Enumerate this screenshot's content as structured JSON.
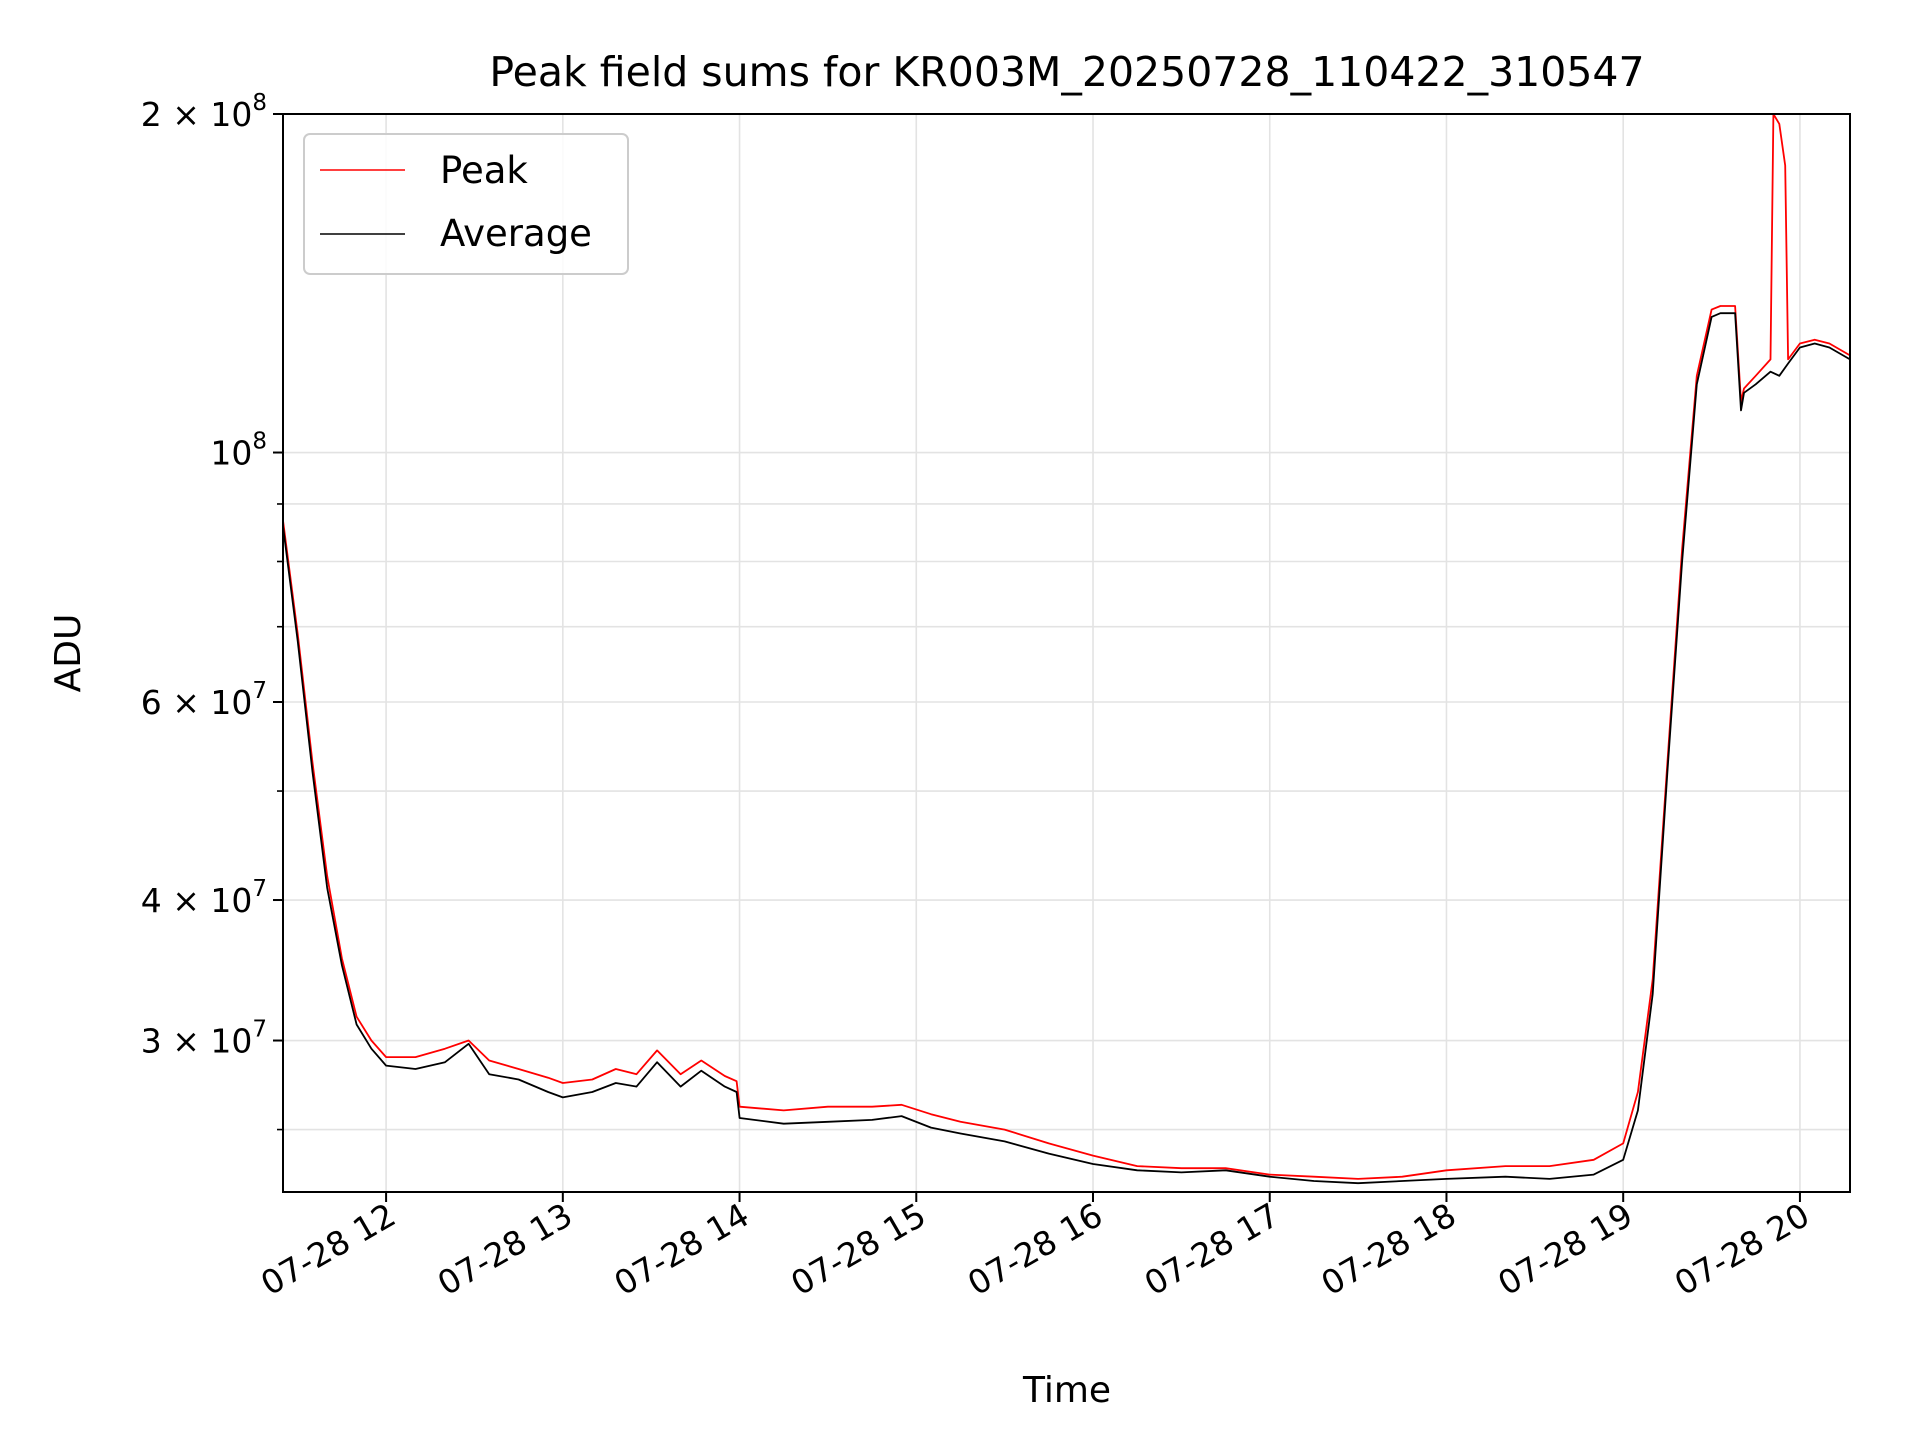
{
  "chart_data": {
    "type": "line",
    "title": "Peak field sums for KR003M_20250728_110422_310547",
    "xlabel": "Time",
    "ylabel": "ADU",
    "x_scale": "time",
    "y_scale": "log",
    "xlim": [
      "2025-07-28 11:25",
      "2025-07-28 20:17"
    ],
    "ylim": [
      22000000,
      200000000
    ],
    "grid": true,
    "legend_position": "top-left",
    "x_ticks": [
      {
        "t": "2025-07-28 12:00",
        "label": "07-28 12"
      },
      {
        "t": "2025-07-28 13:00",
        "label": "07-28 13"
      },
      {
        "t": "2025-07-28 14:00",
        "label": "07-28 14"
      },
      {
        "t": "2025-07-28 15:00",
        "label": "07-28 15"
      },
      {
        "t": "2025-07-28 16:00",
        "label": "07-28 16"
      },
      {
        "t": "2025-07-28 17:00",
        "label": "07-28 17"
      },
      {
        "t": "2025-07-28 18:00",
        "label": "07-28 18"
      },
      {
        "t": "2025-07-28 19:00",
        "label": "07-28 19"
      },
      {
        "t": "2025-07-28 20:00",
        "label": "07-28 20"
      }
    ],
    "y_ticks": [
      {
        "value": 200000000,
        "mant": "2",
        "exp": "8"
      },
      {
        "value": 100000000,
        "mant": "",
        "exp": "8"
      },
      {
        "value": 60000000,
        "mant": "6",
        "exp": "7"
      },
      {
        "value": 40000000,
        "mant": "4",
        "exp": "7"
      },
      {
        "value": 30000000,
        "mant": "3",
        "exp": "7"
      }
    ],
    "y_minor_ticks": [
      25000000,
      50000000,
      70000000,
      80000000,
      90000000
    ],
    "series": [
      {
        "name": "Average",
        "color": "#000000",
        "x": [
          "2025-07-28 11:25",
          "2025-07-28 11:30",
          "2025-07-28 11:35",
          "2025-07-28 11:40",
          "2025-07-28 11:45",
          "2025-07-28 11:50",
          "2025-07-28 11:55",
          "2025-07-28 12:00",
          "2025-07-28 12:10",
          "2025-07-28 12:20",
          "2025-07-28 12:28",
          "2025-07-28 12:35",
          "2025-07-28 12:45",
          "2025-07-28 12:55",
          "2025-07-28 13:00",
          "2025-07-28 13:10",
          "2025-07-28 13:18",
          "2025-07-28 13:25",
          "2025-07-28 13:32",
          "2025-07-28 13:40",
          "2025-07-28 13:47",
          "2025-07-28 13:55",
          "2025-07-28 13:59",
          "2025-07-28 14:00",
          "2025-07-28 14:15",
          "2025-07-28 14:30",
          "2025-07-28 14:45",
          "2025-07-28 14:55",
          "2025-07-28 15:05",
          "2025-07-28 15:15",
          "2025-07-28 15:30",
          "2025-07-28 15:45",
          "2025-07-28 16:00",
          "2025-07-28 16:15",
          "2025-07-28 16:30",
          "2025-07-28 16:45",
          "2025-07-28 17:00",
          "2025-07-28 17:15",
          "2025-07-28 17:30",
          "2025-07-28 17:45",
          "2025-07-28 18:00",
          "2025-07-28 18:20",
          "2025-07-28 18:35",
          "2025-07-28 18:50",
          "2025-07-28 19:00",
          "2025-07-28 19:05",
          "2025-07-28 19:10",
          "2025-07-28 19:15",
          "2025-07-28 19:20",
          "2025-07-28 19:25",
          "2025-07-28 19:30",
          "2025-07-28 19:33",
          "2025-07-28 19:38",
          "2025-07-28 19:40",
          "2025-07-28 19:41",
          "2025-07-28 19:45",
          "2025-07-28 19:50",
          "2025-07-28 19:53",
          "2025-07-28 19:56",
          "2025-07-28 20:00",
          "2025-07-28 20:05",
          "2025-07-28 20:10",
          "2025-07-28 20:17"
        ],
        "y": [
          86000000,
          68000000,
          52000000,
          41000000,
          35000000,
          31000000,
          29500000,
          28500000,
          28300000,
          28700000,
          29800000,
          28000000,
          27700000,
          27000000,
          26700000,
          27000000,
          27500000,
          27300000,
          28700000,
          27300000,
          28200000,
          27300000,
          27000000,
          25600000,
          25300000,
          25400000,
          25500000,
          25700000,
          25100000,
          24800000,
          24400000,
          23800000,
          23300000,
          23000000,
          22900000,
          23000000,
          22700000,
          22500000,
          22400000,
          22500000,
          22600000,
          22700000,
          22600000,
          22800000,
          23500000,
          26000000,
          33000000,
          52000000,
          80000000,
          115000000,
          132000000,
          133000000,
          133000000,
          109000000,
          113000000,
          115000000,
          118000000,
          117000000,
          120000000,
          124000000,
          125000000,
          124000000,
          121000000
        ]
      },
      {
        "name": "Peak",
        "color": "#ff0000",
        "x": [
          "2025-07-28 11:25",
          "2025-07-28 11:30",
          "2025-07-28 11:35",
          "2025-07-28 11:40",
          "2025-07-28 11:45",
          "2025-07-28 11:50",
          "2025-07-28 11:55",
          "2025-07-28 12:00",
          "2025-07-28 12:10",
          "2025-07-28 12:20",
          "2025-07-28 12:28",
          "2025-07-28 12:35",
          "2025-07-28 12:45",
          "2025-07-28 12:55",
          "2025-07-28 13:00",
          "2025-07-28 13:10",
          "2025-07-28 13:18",
          "2025-07-28 13:25",
          "2025-07-28 13:32",
          "2025-07-28 13:40",
          "2025-07-28 13:47",
          "2025-07-28 13:55",
          "2025-07-28 13:59",
          "2025-07-28 14:00",
          "2025-07-28 14:15",
          "2025-07-28 14:30",
          "2025-07-28 14:45",
          "2025-07-28 14:55",
          "2025-07-28 15:05",
          "2025-07-28 15:15",
          "2025-07-28 15:30",
          "2025-07-28 15:45",
          "2025-07-28 16:00",
          "2025-07-28 16:15",
          "2025-07-28 16:30",
          "2025-07-28 16:45",
          "2025-07-28 17:00",
          "2025-07-28 17:15",
          "2025-07-28 17:30",
          "2025-07-28 17:45",
          "2025-07-28 18:00",
          "2025-07-28 18:20",
          "2025-07-28 18:35",
          "2025-07-28 18:50",
          "2025-07-28 19:00",
          "2025-07-28 19:05",
          "2025-07-28 19:10",
          "2025-07-28 19:15",
          "2025-07-28 19:20",
          "2025-07-28 19:25",
          "2025-07-28 19:30",
          "2025-07-28 19:33",
          "2025-07-28 19:38",
          "2025-07-28 19:40",
          "2025-07-28 19:41",
          "2025-07-28 19:45",
          "2025-07-28 19:50",
          "2025-07-28 19:51",
          "2025-07-28 19:53",
          "2025-07-28 19:55",
          "2025-07-28 19:56",
          "2025-07-28 20:00",
          "2025-07-28 20:05",
          "2025-07-28 20:10",
          "2025-07-28 20:17"
        ],
        "y": [
          87000000,
          69000000,
          53000000,
          42000000,
          35500000,
          31500000,
          30000000,
          29000000,
          29000000,
          29500000,
          30000000,
          28800000,
          28300000,
          27800000,
          27500000,
          27700000,
          28300000,
          28000000,
          29400000,
          28000000,
          28800000,
          27900000,
          27600000,
          26200000,
          26000000,
          26200000,
          26200000,
          26300000,
          25800000,
          25400000,
          25000000,
          24300000,
          23700000,
          23200000,
          23100000,
          23100000,
          22800000,
          22700000,
          22600000,
          22700000,
          23000000,
          23200000,
          23200000,
          23500000,
          24300000,
          27000000,
          34000000,
          53000000,
          82000000,
          117000000,
          134000000,
          135000000,
          135000000,
          111000000,
          114000000,
          117000000,
          121000000,
          200000000,
          196000000,
          180000000,
          121000000,
          125000000,
          126000000,
          125000000,
          122000000
        ]
      }
    ]
  }
}
